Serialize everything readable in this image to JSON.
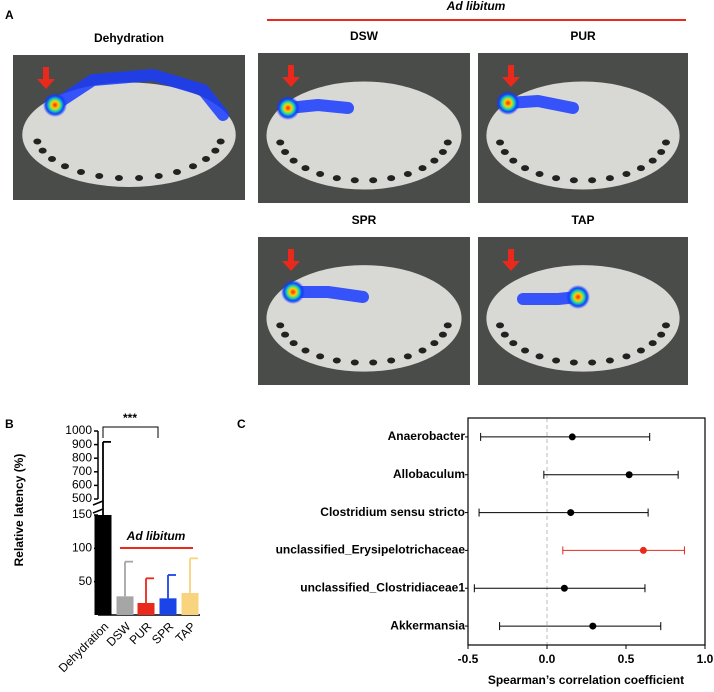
{
  "panel_a": {
    "panel_label": "A",
    "group_label": "Ad libitum",
    "images": [
      {
        "title": "Dehydration"
      },
      {
        "title": "DSW"
      },
      {
        "title": "PUR"
      },
      {
        "title": "SPR"
      },
      {
        "title": "TAP"
      }
    ]
  },
  "chart_data": [
    {
      "type": "bar",
      "panel_label": "B",
      "ylabel": "Relative latency (%)",
      "categories": [
        "Dehydration",
        "DSW",
        "PUR",
        "SPR",
        "TAP"
      ],
      "values": [
        150,
        28,
        18,
        25,
        33
      ],
      "errors": [
        770,
        52,
        37,
        35,
        52
      ],
      "colors": [
        "#000000",
        "#a6a6a6",
        "#e8291c",
        "#1a44e8",
        "#f9d47e"
      ],
      "ylim": [
        0,
        150
      ],
      "yticks": [
        50,
        100,
        150
      ],
      "ylim_upper": [
        500,
        1000
      ],
      "yticks_upper": [
        500,
        600,
        700,
        800,
        900,
        1000
      ],
      "annotation": "***",
      "group_label": "Ad libitum"
    },
    {
      "type": "forest",
      "panel_label": "C",
      "xlabel": "Spearman’s correlation coefficient",
      "categories": [
        "Anaerobacter",
        "Allobaculum",
        "Clostridium sensu stricto",
        "unclassified_Erysipelotrichaceae",
        "unclassified_Clostridiaceae1",
        "Akkermansia"
      ],
      "values": [
        0.16,
        0.52,
        0.15,
        0.61,
        0.11,
        0.29
      ],
      "ci_low": [
        -0.42,
        -0.02,
        -0.43,
        0.1,
        -0.46,
        -0.3
      ],
      "ci_high": [
        0.65,
        0.83,
        0.64,
        0.87,
        0.62,
        0.72
      ],
      "colors": [
        "#000000",
        "#000000",
        "#000000",
        "#e8291c",
        "#000000",
        "#000000"
      ],
      "xlim": [
        -0.5,
        1.0
      ],
      "xticks": [
        -0.5,
        {
          "value": 0,
          "label": "0.0"
        },
        0.5,
        {
          "value": 1,
          "label": "1.0"
        }
      ],
      "reference_line": 0
    }
  ]
}
